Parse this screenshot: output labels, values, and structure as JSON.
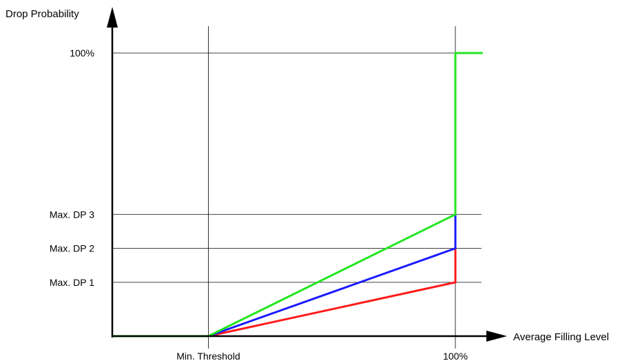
{
  "chart_data": {
    "type": "line",
    "title": "",
    "xlabel": "Average Filling  Level",
    "ylabel": "Drop Probability",
    "x_ticks": [
      {
        "label": "Min. Threshold",
        "value": 0.28
      },
      {
        "label": "100%",
        "value": 1.0
      }
    ],
    "y_ticks": [
      {
        "label": "Max. DP 1",
        "value": 0.19
      },
      {
        "label": "Max. DP 2",
        "value": 0.31
      },
      {
        "label": "Max. DP 3",
        "value": 0.43
      },
      {
        "label": "100%",
        "value": 1.0
      }
    ],
    "xlim": [
      0,
      1.08
    ],
    "ylim": [
      0,
      1.0
    ],
    "grid": true,
    "series": [
      {
        "color": "#ff1a1a",
        "x": [
          0,
          0.28,
          1.0,
          1.0
        ],
        "y": [
          0,
          0,
          0.19,
          0.31
        ]
      },
      {
        "color": "#1a1aff",
        "x": [
          0,
          0.28,
          1.0,
          1.0
        ],
        "y": [
          0,
          0,
          0.31,
          0.43
        ]
      },
      {
        "color": "#22e61e",
        "x": [
          0,
          0.28,
          1.0,
          1.0,
          1.08
        ],
        "y": [
          0,
          0,
          0.43,
          1.0,
          1.0
        ]
      }
    ]
  }
}
